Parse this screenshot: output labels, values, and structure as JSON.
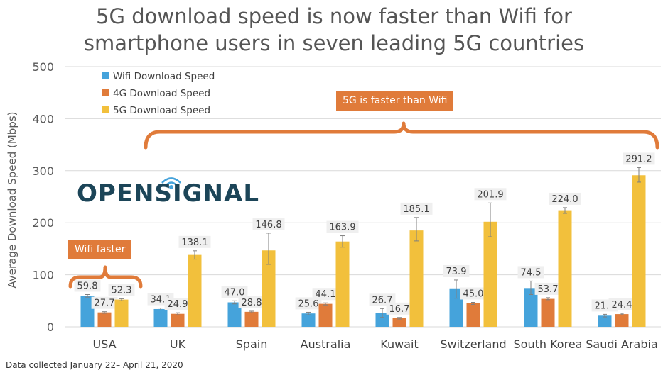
{
  "title_line1": "5G download speed is now faster than Wifi for",
  "title_line2": "smartphone users in seven leading 5G countries",
  "footnote": "Data collected January 22– April 21, 2020",
  "brand_name": "OPENSIGNAL",
  "callouts": {
    "five_g": "5G is faster than Wifi",
    "wifi": "Wifi faster"
  },
  "colors": {
    "wifi": "#45a3db",
    "four_g": "#e07b3a",
    "five_g": "#f2c03c",
    "brand": "#1c4558",
    "bracket": "#e07b3a"
  },
  "chart_data": {
    "type": "bar",
    "title": "5G download speed is now faster than Wifi for smartphone users in seven leading 5G countries",
    "xlabel": "",
    "ylabel": "Average Download Speed (Mbps)",
    "ylim": [
      0,
      500
    ],
    "yticks": [
      0,
      100,
      200,
      300,
      400,
      500
    ],
    "grid": true,
    "legend_position": "top-left",
    "categories": [
      "USA",
      "UK",
      "Spain",
      "Australia",
      "Kuwait",
      "Switzerland",
      "South Korea",
      "Saudi Arabia"
    ],
    "series": [
      {
        "name": "Wifi Download Speed",
        "values": [
          59.8,
          34.1,
          47.0,
          25.6,
          26.7,
          73.9,
          74.5,
          21.4
        ],
        "labels": [
          "59.8",
          "34.1",
          "47.0",
          "25.6",
          "26.7",
          "73.9",
          "74.5",
          "21.4"
        ]
      },
      {
        "name": "4G Download Speed",
        "values": [
          27.7,
          24.9,
          28.8,
          44.1,
          16.7,
          45.0,
          53.7,
          24.4
        ],
        "labels": [
          "27.7",
          "24.9",
          "28.8",
          "44.1",
          "16.7",
          "45.0",
          "53.7",
          "24.4"
        ]
      },
      {
        "name": "5G Download Speed",
        "values": [
          52.3,
          138.1,
          146.8,
          163.9,
          185.1,
          201.9,
          224.0,
          291.2
        ],
        "labels": [
          "52.3",
          "138.1",
          "146.8",
          "163.9",
          "185.1",
          "201.9",
          "224.0",
          "291.2"
        ]
      }
    ],
    "error_ranges": [
      [
        [
          57,
          62
        ],
        [
          26,
          29
        ],
        [
          50,
          54
        ]
      ],
      [
        [
          32,
          36
        ],
        [
          23,
          27
        ],
        [
          130,
          146
        ]
      ],
      [
        [
          44,
          50
        ],
        [
          27,
          30
        ],
        [
          120,
          180
        ]
      ],
      [
        [
          23,
          28
        ],
        [
          42,
          46
        ],
        [
          153,
          175
        ]
      ],
      [
        [
          18,
          35
        ],
        [
          15,
          18
        ],
        [
          165,
          210
        ]
      ],
      [
        [
          55,
          90
        ],
        [
          43,
          47
        ],
        [
          173,
          238
        ]
      ],
      [
        [
          62,
          88
        ],
        [
          52,
          56
        ],
        [
          218,
          229
        ]
      ],
      [
        [
          19,
          24
        ],
        [
          23,
          26
        ],
        [
          278,
          306
        ]
      ]
    ]
  }
}
